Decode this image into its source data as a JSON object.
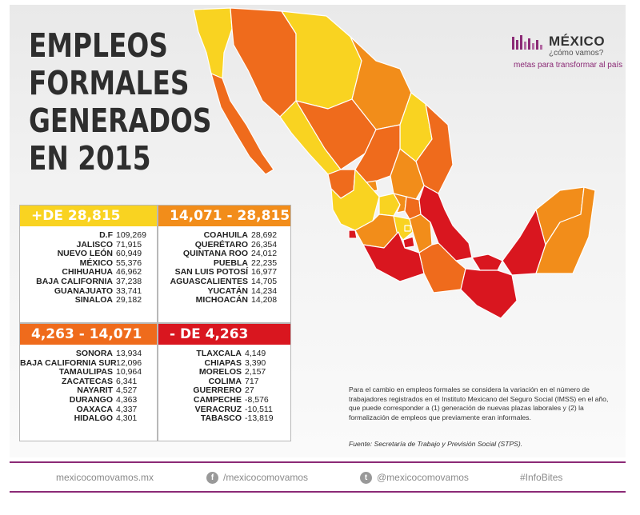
{
  "title": {
    "lines": [
      "EMPLEOS",
      "FORMALES",
      "GENERADOS",
      "EN 2015"
    ]
  },
  "logo": {
    "name": "MÉXICO",
    "sub": "¿cómo vamos?",
    "tagline": "metas para transformar al país",
    "color": "#8b2a76"
  },
  "colors": {
    "top": "#f9d321",
    "high": "#f28d1a",
    "mid": "#ef6b1c",
    "low": "#d9161f"
  },
  "groups": [
    {
      "label": "+DE 28,815",
      "color": "#f9d321",
      "rows": [
        {
          "state": "D.F",
          "value": "109,269"
        },
        {
          "state": "JALISCO",
          "value": "71,915"
        },
        {
          "state": "NUEVO LEÓN",
          "value": "60,949"
        },
        {
          "state": "MÉXICO",
          "value": "55,376"
        },
        {
          "state": "CHIHUAHUA",
          "value": "46,962"
        },
        {
          "state": "BAJA CALIFORNIA",
          "value": "37,238"
        },
        {
          "state": "GUANAJUATO",
          "value": "33,741"
        },
        {
          "state": "SINALOA",
          "value": "29,182"
        }
      ]
    },
    {
      "label": "14,071 - 28,815",
      "color": "#f28d1a",
      "rows": [
        {
          "state": "COAHUILA",
          "value": "28,692"
        },
        {
          "state": "QUERÉTARO",
          "value": "26,354"
        },
        {
          "state": "QUINTANA ROO",
          "value": "24,012"
        },
        {
          "state": "PUEBLA",
          "value": "22,235"
        },
        {
          "state": "SAN LUIS POTOSÍ",
          "value": "16,977"
        },
        {
          "state": "AGUASCALIENTES",
          "value": "14,705"
        },
        {
          "state": "YUCATÁN",
          "value": "14,234"
        },
        {
          "state": "MICHOACÁN",
          "value": "14,208"
        }
      ]
    },
    {
      "label": "4,263 - 14,071",
      "color": "#ef6b1c",
      "rows": [
        {
          "state": "SONORA",
          "value": "13,934"
        },
        {
          "state": "BAJA CALIFORNIA SUR",
          "value": "12,096"
        },
        {
          "state": "TAMAULIPAS",
          "value": "10,964"
        },
        {
          "state": "ZACATECAS",
          "value": "6,341"
        },
        {
          "state": "NAYARIT",
          "value": "4,527"
        },
        {
          "state": "DURANGO",
          "value": "4,363"
        },
        {
          "state": "OAXACA",
          "value": "4,337"
        },
        {
          "state": "HIDALGO",
          "value": "4,301"
        }
      ]
    },
    {
      "label": "- DE 4,263",
      "color": "#d9161f",
      "rows": [
        {
          "state": "TLAXCALA",
          "value": "4,149"
        },
        {
          "state": "CHIAPAS",
          "value": "3,390"
        },
        {
          "state": "MORELOS",
          "value": "2,157"
        },
        {
          "state": "COLIMA",
          "value": "717"
        },
        {
          "state": "GUERRERO",
          "value": "27"
        },
        {
          "state": "CAMPECHE",
          "value": "-8,576"
        },
        {
          "state": "VERACRUZ",
          "value": "-10,511"
        },
        {
          "state": "TABASCO",
          "value": "-13,819"
        }
      ]
    }
  ],
  "note": "Para el cambio en empleos formales se considera la variación en el número de trabajadores registrados en el Instituto Mexicano del Seguro Social (IMSS) en el año, que puede corresponder a (1) generación de nuevas plazas laborales y (2) la formalización de empleos que previamente eran informales.",
  "source": "Fuente: Secretaría de Trabajo y Previsión Social (STPS).",
  "footer": {
    "website": "mexicocomovamos.mx",
    "facebook": "/mexicocomovamos",
    "twitter": "@mexicocomovamos",
    "hashtag": "#InfoBites",
    "facebook_icon": "facebook-icon",
    "twitter_icon": "twitter-icon"
  }
}
